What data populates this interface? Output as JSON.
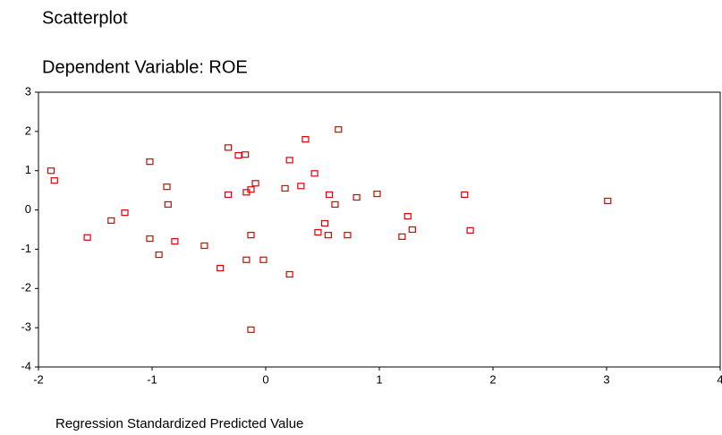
{
  "chart_data": {
    "type": "scatter",
    "title": "Scatterplot",
    "subtitle": "Dependent Variable: ROE",
    "x_label": "Regression Standardized Predicted Value",
    "color": "#e00000",
    "xlim": [
      -2,
      4
    ],
    "xticks": [
      -2,
      -1,
      0,
      1,
      2,
      3,
      4
    ],
    "ylim": [
      -4,
      3
    ],
    "yticks": [
      -4,
      -3,
      -2,
      -1,
      0,
      1,
      2,
      3
    ],
    "x": [
      -1.89,
      -1.86,
      -1.57,
      -1.36,
      -1.24,
      -1.02,
      -1.02,
      -0.94,
      -0.87,
      -0.86,
      -0.8,
      -0.54,
      -0.4,
      -0.33,
      -0.33,
      -0.24,
      -0.18,
      -0.17,
      -0.17,
      -0.13,
      -0.13,
      -0.09,
      -0.13,
      -0.02,
      0.17,
      0.21,
      0.21,
      0.31,
      0.35,
      0.43,
      0.46,
      0.52,
      0.55,
      0.56,
      0.61,
      0.64,
      0.72,
      0.8,
      0.98,
      1.2,
      1.25,
      1.29,
      1.75,
      1.8,
      3.01
    ],
    "values": [
      1.0,
      0.75,
      -0.7,
      -0.27,
      -0.07,
      1.23,
      -0.73,
      -1.14,
      0.59,
      0.14,
      -0.8,
      -0.91,
      -1.48,
      1.59,
      0.39,
      1.39,
      1.41,
      0.45,
      -1.27,
      -0.64,
      0.52,
      0.68,
      -3.05,
      -1.27,
      0.55,
      1.27,
      -1.64,
      0.61,
      1.8,
      0.93,
      -0.57,
      -0.34,
      -0.64,
      0.39,
      0.14,
      2.05,
      -0.64,
      0.32,
      0.41,
      -0.68,
      -0.16,
      -0.5,
      0.39,
      -0.52,
      0.23
    ]
  }
}
